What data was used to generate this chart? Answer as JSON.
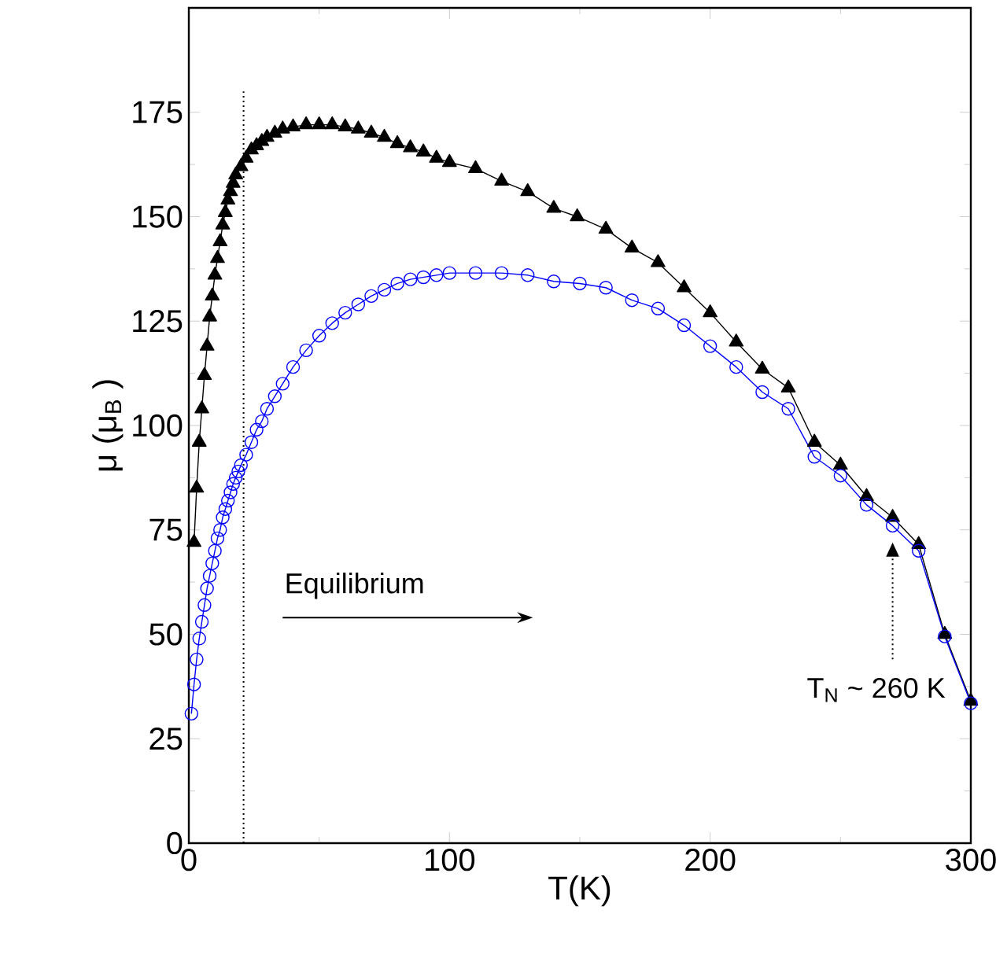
{
  "chart_data": {
    "type": "line",
    "xlabel": "T(K)",
    "ylabel": "μ (μ$_{B}$ )",
    "xlim": [
      0,
      300
    ],
    "xticks": [
      0,
      100,
      200,
      300
    ],
    "ylim": [
      0,
      200
    ],
    "yticks": [
      0,
      25,
      50,
      75,
      100,
      125,
      150,
      175
    ],
    "grid": false,
    "series": [
      {
        "color": "#000000",
        "marker": "triangle",
        "x": [
          2,
          3,
          4,
          5,
          6,
          7,
          8,
          9,
          10,
          11,
          12,
          13,
          14,
          15,
          16,
          17,
          18,
          20,
          22,
          24,
          26,
          28,
          30,
          33,
          36,
          40,
          45,
          50,
          55,
          60,
          65,
          70,
          75,
          80,
          85,
          90,
          95,
          100,
          110,
          120,
          130,
          140,
          149,
          160,
          170,
          180,
          190,
          200,
          210,
          220,
          230,
          240,
          250,
          260,
          270,
          280,
          290,
          300
        ],
        "values": [
          72,
          85,
          96,
          104,
          112,
          119,
          126,
          131,
          136,
          140,
          144,
          148,
          151,
          154,
          156,
          158,
          160,
          162,
          164,
          166,
          167,
          168,
          169,
          170,
          171,
          171.5,
          172,
          172,
          172,
          171.5,
          171,
          170,
          169,
          167.5,
          166.5,
          165.5,
          164,
          163,
          161.5,
          158.5,
          156,
          152,
          150,
          147,
          142.5,
          139,
          133,
          127,
          120,
          113.5,
          109,
          96,
          90.5,
          83,
          78,
          71.5,
          50,
          34
        ]
      },
      {
        "color": "#0000ff",
        "marker": "circle",
        "x": [
          1,
          2,
          3,
          4,
          5,
          6,
          7,
          8,
          9,
          10,
          11,
          12,
          13,
          14,
          15,
          16,
          17,
          18,
          19,
          20,
          22,
          24,
          26,
          28,
          30,
          33,
          36,
          40,
          45,
          50,
          55,
          60,
          65,
          70,
          75,
          80,
          85,
          90,
          95,
          100,
          110,
          120,
          130,
          140,
          150,
          160,
          170,
          180,
          190,
          200,
          210,
          220,
          230,
          240,
          250,
          260,
          270,
          280,
          290,
          300
        ],
        "values": [
          31,
          38,
          44,
          49,
          53,
          57,
          61,
          64,
          67,
          70,
          73,
          75,
          78,
          80,
          82,
          84,
          86,
          87.5,
          89,
          90.5,
          93,
          96,
          99,
          101,
          104,
          107,
          110,
          114,
          118,
          121.5,
          124.5,
          127,
          129,
          131,
          132.5,
          134,
          135,
          135.5,
          136,
          136.5,
          136.5,
          136.5,
          136,
          134.5,
          134,
          133,
          130,
          128,
          124,
          119,
          114,
          108,
          104,
          92.5,
          88,
          81,
          76,
          70,
          49.5,
          33.5
        ]
      }
    ],
    "ref_lines": [
      {
        "axis": "x",
        "value": 21,
        "line_style": "dotted"
      }
    ],
    "annotations": [
      "Equilibrium",
      "T$_{N}$ ~ 260 K"
    ]
  }
}
